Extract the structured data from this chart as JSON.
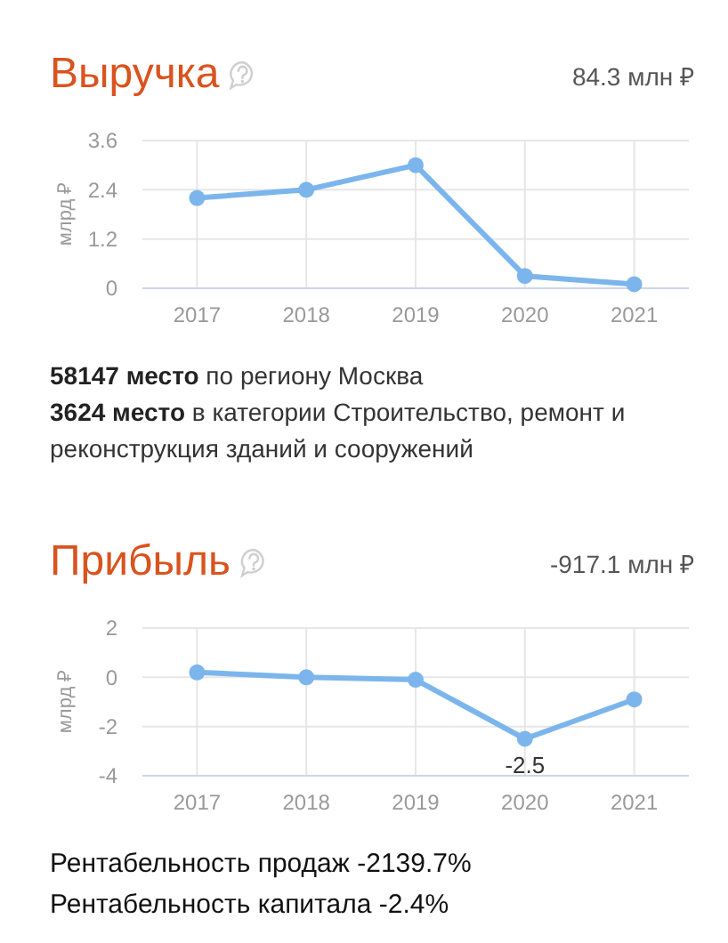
{
  "chart_data": [
    {
      "type": "line",
      "title": "Выручка",
      "subtitle": "84.3 млн ₽",
      "ylabel": "млрд ₽",
      "categories": [
        "2017",
        "2018",
        "2019",
        "2020",
        "2021"
      ],
      "values": [
        2.2,
        2.4,
        3.0,
        0.3,
        0.1
      ],
      "color": "#7cb5ec",
      "ylim": [
        0,
        3.6
      ],
      "yticks": [
        0,
        1.2,
        2.4,
        3.6
      ],
      "grid": true,
      "marker": "circle",
      "annotations": [
        "58147 место по региону Москва",
        "3624 место в категории Строительство, ремонт и реконструкция зданий и сооружений"
      ]
    },
    {
      "type": "line",
      "title": "Прибыль",
      "subtitle": "-917.1 млн ₽",
      "ylabel": "млрд ₽",
      "categories": [
        "2017",
        "2018",
        "2019",
        "2020",
        "2021"
      ],
      "values": [
        0.2,
        0.0,
        -0.1,
        -2.5,
        -0.9
      ],
      "value_labels": [
        null,
        null,
        null,
        "-2.5",
        null
      ],
      "color": "#7cb5ec",
      "ylim": [
        -4,
        2
      ],
      "yticks": [
        -4,
        -2,
        0,
        2
      ],
      "grid": true,
      "marker": "circle",
      "annotations": [
        "Рентабельность продаж -2139.7%",
        "Рентабельность капитала -2.4%"
      ]
    }
  ]
}
